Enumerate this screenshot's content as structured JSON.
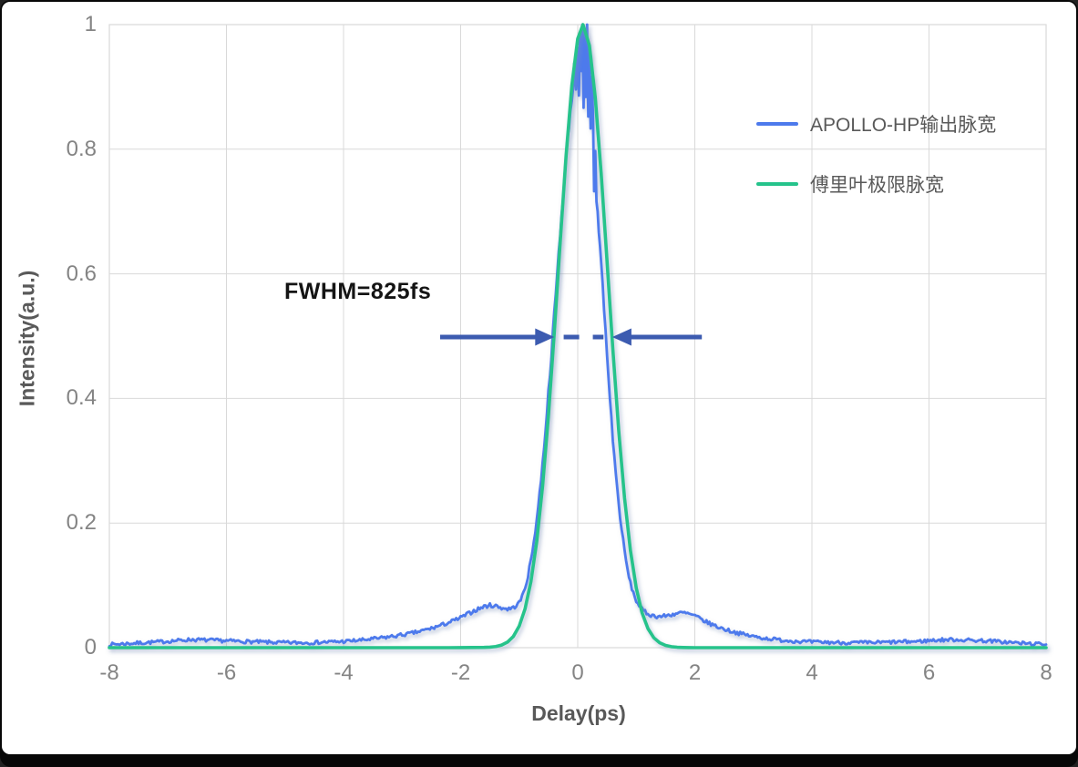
{
  "chart_data": {
    "type": "line",
    "title": "",
    "xlabel": "Delay(ps)",
    "ylabel": "Intensity(a.u.)",
    "xlim": [
      -8,
      8
    ],
    "ylim": [
      0,
      1
    ],
    "grid": true,
    "grid_color": "#d9d9d9",
    "tick_color": "#848484",
    "axis_title_color": "#595959",
    "legend_position": "upper-right-inside",
    "x_ticks": {
      "values": [
        -8,
        -6,
        -4,
        -2,
        0,
        2,
        4,
        6,
        8
      ],
      "labels": [
        "-8",
        "-6",
        "-4",
        "-2",
        "0",
        "2",
        "4",
        "6",
        "8"
      ]
    },
    "y_ticks": {
      "values": [
        1,
        0.8,
        0.6,
        0.4,
        0.2,
        0
      ],
      "labels": [
        "1",
        "0.8",
        "0.6",
        "0.4",
        "0.2",
        "0"
      ]
    },
    "series": [
      {
        "name": "APOLLO-HP输出脉宽",
        "color": "#4d7aec",
        "stroke_width": 2.8,
        "noise": {
          "seed": 7,
          "base": 0.0028,
          "scale": 0.007
        },
        "points": [
          [
            -8,
            0.005
          ],
          [
            -7.6,
            0.007
          ],
          [
            -7.2,
            0.009
          ],
          [
            -6.9,
            0.011
          ],
          [
            -6.6,
            0.013
          ],
          [
            -6.3,
            0.012
          ],
          [
            -6,
            0.011
          ],
          [
            -5.7,
            0.01
          ],
          [
            -5.4,
            0.009
          ],
          [
            -5,
            0.008
          ],
          [
            -4.6,
            0.008
          ],
          [
            -4.3,
            0.009
          ],
          [
            -4,
            0.01
          ],
          [
            -3.7,
            0.012
          ],
          [
            -3.4,
            0.015
          ],
          [
            -3.1,
            0.019
          ],
          [
            -2.9,
            0.022
          ],
          [
            -2.7,
            0.026
          ],
          [
            -2.5,
            0.031
          ],
          [
            -2.3,
            0.037
          ],
          [
            -2.1,
            0.044
          ],
          [
            -2,
            0.048
          ],
          [
            -1.9,
            0.053
          ],
          [
            -1.8,
            0.058
          ],
          [
            -1.7,
            0.062
          ],
          [
            -1.6,
            0.066
          ],
          [
            -1.5,
            0.068
          ],
          [
            -1.4,
            0.067
          ],
          [
            -1.3,
            0.064
          ],
          [
            -1.2,
            0.062
          ],
          [
            -1.1,
            0.064
          ],
          [
            -1,
            0.072
          ],
          [
            -0.95,
            0.082
          ],
          [
            -0.9,
            0.096
          ],
          [
            -0.85,
            0.115
          ],
          [
            -0.8,
            0.14
          ],
          [
            -0.75,
            0.17
          ],
          [
            -0.7,
            0.205
          ],
          [
            -0.65,
            0.248
          ],
          [
            -0.6,
            0.295
          ],
          [
            -0.55,
            0.35
          ],
          [
            -0.5,
            0.41
          ],
          [
            -0.45,
            0.47
          ],
          [
            -0.4,
            0.535
          ],
          [
            -0.35,
            0.6
          ],
          [
            -0.3,
            0.665
          ],
          [
            -0.25,
            0.725
          ],
          [
            -0.2,
            0.785
          ],
          [
            -0.15,
            0.84
          ],
          [
            -0.1,
            0.88
          ],
          [
            -0.06,
            0.93
          ],
          [
            -0.03,
            0.9
          ],
          [
            0,
            0.97
          ],
          [
            0.02,
            0.89
          ],
          [
            0.04,
            0.99
          ],
          [
            0.06,
            0.92
          ],
          [
            0.08,
            1
          ],
          [
            0.1,
            0.86
          ],
          [
            0.12,
            0.98
          ],
          [
            0.14,
            0.88
          ],
          [
            0.16,
            0.995
          ],
          [
            0.18,
            0.85
          ],
          [
            0.2,
            0.95
          ],
          [
            0.22,
            0.83
          ],
          [
            0.24,
            0.92
          ],
          [
            0.26,
            0.86
          ],
          [
            0.28,
            0.73
          ],
          [
            0.3,
            0.8
          ],
          [
            0.32,
            0.72
          ],
          [
            0.34,
            0.7
          ],
          [
            0.36,
            0.665
          ],
          [
            0.4,
            0.62
          ],
          [
            0.45,
            0.545
          ],
          [
            0.5,
            0.47
          ],
          [
            0.55,
            0.4
          ],
          [
            0.6,
            0.335
          ],
          [
            0.65,
            0.28
          ],
          [
            0.7,
            0.23
          ],
          [
            0.75,
            0.19
          ],
          [
            0.8,
            0.155
          ],
          [
            0.85,
            0.125
          ],
          [
            0.9,
            0.103
          ],
          [
            0.95,
            0.088
          ],
          [
            1,
            0.075
          ],
          [
            1.1,
            0.061
          ],
          [
            1.2,
            0.054
          ],
          [
            1.3,
            0.051
          ],
          [
            1.4,
            0.05
          ],
          [
            1.5,
            0.051
          ],
          [
            1.6,
            0.053
          ],
          [
            1.7,
            0.055
          ],
          [
            1.8,
            0.056
          ],
          [
            1.9,
            0.054
          ],
          [
            2,
            0.051
          ],
          [
            2.1,
            0.046
          ],
          [
            2.2,
            0.041
          ],
          [
            2.3,
            0.037
          ],
          [
            2.4,
            0.033
          ],
          [
            2.6,
            0.027
          ],
          [
            2.8,
            0.022
          ],
          [
            3,
            0.018
          ],
          [
            3.2,
            0.015
          ],
          [
            3.5,
            0.012
          ],
          [
            3.8,
            0.01
          ],
          [
            4,
            0.009
          ],
          [
            4.3,
            0.0085
          ],
          [
            4.6,
            0.008
          ],
          [
            5,
            0.008
          ],
          [
            5.4,
            0.009
          ],
          [
            5.8,
            0.01
          ],
          [
            6.1,
            0.012
          ],
          [
            6.4,
            0.013
          ],
          [
            6.7,
            0.012
          ],
          [
            7,
            0.011
          ],
          [
            7.3,
            0.009
          ],
          [
            7.6,
            0.007
          ],
          [
            8,
            0.005
          ]
        ]
      },
      {
        "name": "傅里叶极限脉宽",
        "color": "#25c38b",
        "stroke_width": 3.6,
        "points": [
          [
            -8,
            0
          ],
          [
            -3,
            0
          ],
          [
            -2.2,
            0
          ],
          [
            -2,
            0.0001
          ],
          [
            -1.8,
            0.0003
          ],
          [
            -1.6,
            0.0005
          ],
          [
            -1.5,
            0.0008
          ],
          [
            -1.4,
            0.0018
          ],
          [
            -1.3,
            0.0042
          ],
          [
            -1.2,
            0.0089
          ],
          [
            -1.1,
            0.018
          ],
          [
            -1,
            0.0345
          ],
          [
            -0.9,
            0.0622
          ],
          [
            -0.8,
            0.1059
          ],
          [
            -0.7,
            0.1705
          ],
          [
            -0.6,
            0.2595
          ],
          [
            -0.5,
            0.3729
          ],
          [
            -0.4,
            0.5064
          ],
          [
            -0.3,
            0.6499
          ],
          [
            -0.2,
            0.788
          ],
          [
            -0.1,
            0.9027
          ],
          [
            0,
            0.9773
          ],
          [
            0.09,
            1
          ],
          [
            0.2,
            0.9663
          ],
          [
            0.3,
            0.8825
          ],
          [
            0.4,
            0.7616
          ],
          [
            0.5,
            0.621
          ],
          [
            0.6,
            0.4786
          ],
          [
            0.7,
            0.3486
          ],
          [
            0.8,
            0.2397
          ],
          [
            0.9,
            0.156
          ],
          [
            1,
            0.0957
          ],
          [
            1.1,
            0.0555
          ],
          [
            1.2,
            0.0305
          ],
          [
            1.3,
            0.0158
          ],
          [
            1.4,
            0.0078
          ],
          [
            1.5,
            0.0036
          ],
          [
            1.6,
            0.0016
          ],
          [
            1.7,
            0.0007
          ],
          [
            1.8,
            0.0003
          ],
          [
            1.9,
            0.0001
          ],
          [
            2,
            0
          ],
          [
            2.2,
            0
          ],
          [
            3,
            0
          ],
          [
            8,
            0
          ]
        ]
      }
    ],
    "annotation": {
      "label": "FWHM=825fs",
      "value_ps": 0.825,
      "color": "#3c5bb0",
      "y": 0.4985,
      "left_arrow": {
        "from": -2.35,
        "to": -0.4
      },
      "right_arrow": {
        "from": 2.12,
        "to": 0.59
      },
      "dash_line": {
        "from": -0.24,
        "to": 0.44
      }
    }
  }
}
